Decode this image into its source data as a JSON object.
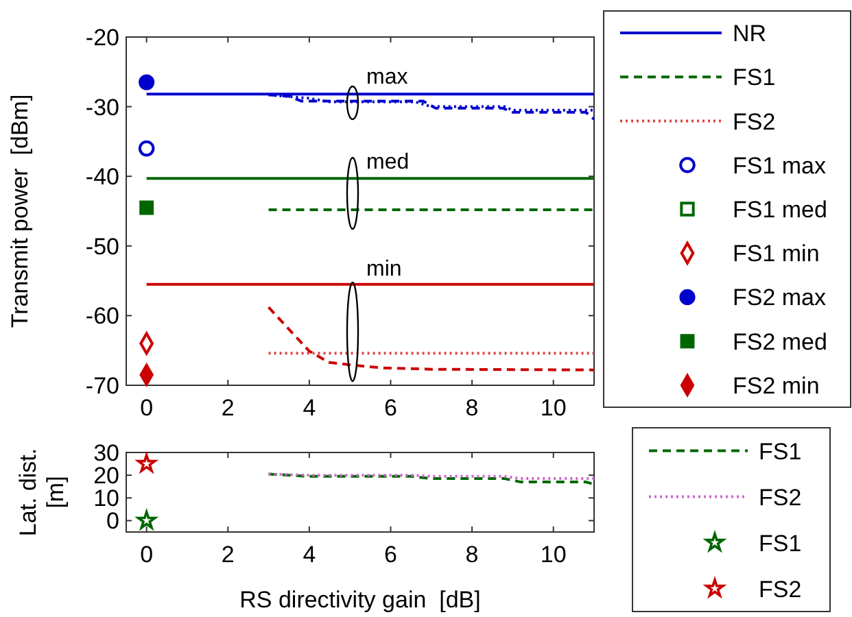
{
  "chart_data": [
    {
      "type": "line",
      "ylabel": "Transmit power  [dBm]",
      "xlim": [
        -0.5,
        11
      ],
      "xticks": [
        0,
        2,
        4,
        6,
        8,
        10
      ],
      "ylim": [
        -70,
        -20
      ],
      "yticks": [
        -70,
        -60,
        -50,
        -40,
        -30,
        -20
      ],
      "legend": "right",
      "grid": false,
      "annotations": [
        "max",
        "med",
        "min"
      ],
      "series": [
        {
          "name": "NR",
          "color": "#0000cc",
          "line_style": "solid",
          "x": [
            0,
            11
          ],
          "values": [
            -28.2,
            -28.2
          ]
        },
        {
          "name": "FS1",
          "color": "#006600",
          "line_style": "dashed",
          "x": [
            3,
            11
          ],
          "values": [
            -44.8,
            -44.8
          ]
        },
        {
          "name": "FS2",
          "color": "#dd4444",
          "line_style": "dotted",
          "x": [
            3,
            11
          ],
          "values": [
            -65.4,
            -65.4
          ]
        },
        {
          "name": "FS1 max",
          "type": "scatter",
          "marker": "circle",
          "color": "#0000cc",
          "x": [
            0
          ],
          "values": [
            -36
          ]
        },
        {
          "name": "FS1 med",
          "type": "scatter",
          "marker": "square",
          "color": "#006600",
          "values": [
            null
          ]
        },
        {
          "name": "FS1 min",
          "type": "scatter",
          "marker": "diamond",
          "color": "#cc0000",
          "x": [
            0
          ],
          "values": [
            -64
          ]
        },
        {
          "name": "FS2 max",
          "type": "scatter",
          "marker": "circle",
          "color": "#0000cc",
          "x": [
            0
          ],
          "values": [
            -26.5
          ]
        },
        {
          "name": "FS2 med",
          "type": "scatter",
          "marker": "square",
          "color": "#006600",
          "x": [
            0
          ],
          "values": [
            -44.5
          ]
        },
        {
          "name": "FS2 min",
          "type": "scatter",
          "marker": "diamond",
          "color": "#cc0000",
          "x": [
            0
          ],
          "values": [
            -68.5
          ]
        },
        {
          "color": "#006600",
          "line_style": "solid",
          "x": [
            0,
            11
          ],
          "values": [
            -40.3,
            -40.3
          ]
        },
        {
          "color": "#cc0000",
          "line_style": "solid",
          "x": [
            0,
            11
          ],
          "values": [
            -55.5,
            -55.5
          ]
        },
        {
          "color": "#0000cc",
          "line_style": "dashed",
          "x": [
            3,
            3.5,
            3.8,
            6.8,
            7.1,
            8.75,
            9,
            10.8,
            11
          ],
          "values": [
            -28.3,
            -28.5,
            -29.2,
            -29.2,
            -30.2,
            -30.2,
            -30.8,
            -30.8,
            -31.8
          ]
        },
        {
          "color": "#0000cc",
          "line_style": "dotted",
          "x": [
            3,
            4,
            4.5,
            6.6,
            7,
            8.8,
            9,
            11
          ],
          "values": [
            -28.3,
            -28.8,
            -29.3,
            -29.3,
            -30,
            -30,
            -30.5,
            -30.5
          ]
        },
        {
          "color": "#cc0000",
          "line_style": "dashed",
          "x": [
            3,
            3.57,
            4,
            4.48,
            5.05,
            5.8,
            7,
            11
          ],
          "values": [
            -58.8,
            -62.4,
            -65.1,
            -66.7,
            -67.1,
            -67.5,
            -67.7,
            -67.8
          ]
        }
      ]
    },
    {
      "type": "line",
      "xlabel": "RS directivity gain  [dB]",
      "ylabel": "Lat. dist. [m]",
      "xlim": [
        -0.5,
        11
      ],
      "xticks": [
        0,
        2,
        4,
        6,
        8,
        10
      ],
      "ylim": [
        -5,
        30
      ],
      "yticks": [
        0,
        10,
        20,
        30
      ],
      "legend": "right",
      "grid": false,
      "series": [
        {
          "name": "FS1",
          "color": "#006600",
          "line_style": "dashed",
          "x": [
            3,
            3.5,
            4,
            6.5,
            7,
            8.8,
            9.2,
            10.8,
            11
          ],
          "values": [
            20.5,
            20,
            19.5,
            19.5,
            18.5,
            18.5,
            17,
            17,
            16
          ]
        },
        {
          "name": "FS2",
          "color": "#cc66cc",
          "line_style": "dotted",
          "x": [
            3,
            4,
            6.5,
            7,
            8.8,
            9.2,
            11
          ],
          "values": [
            20.5,
            20,
            20,
            19.5,
            19.5,
            18.5,
            18.5
          ]
        },
        {
          "name": "FS1",
          "type": "scatter",
          "marker": "star",
          "color": "#006600",
          "x": [
            0
          ],
          "values": [
            0
          ]
        },
        {
          "name": "FS2",
          "type": "scatter",
          "marker": "star",
          "color": "#cc0000",
          "x": [
            0
          ],
          "values": [
            25
          ]
        }
      ]
    }
  ]
}
